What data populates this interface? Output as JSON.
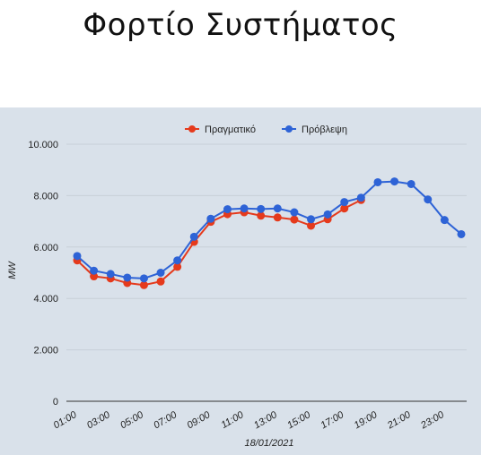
{
  "page": {
    "title": "Φορτίο Συστήματος"
  },
  "chart_data": {
    "type": "line",
    "title": "Φορτίο Συστήματος",
    "xlabel": "18/01/2021",
    "ylabel": "MW",
    "x": [
      "01:00",
      "02:00",
      "03:00",
      "04:00",
      "05:00",
      "06:00",
      "07:00",
      "08:00",
      "09:00",
      "10:00",
      "11:00",
      "12:00",
      "13:00",
      "14:00",
      "15:00",
      "16:00",
      "17:00",
      "18:00",
      "19:00",
      "20:00",
      "21:00",
      "22:00",
      "23:00",
      "24:00"
    ],
    "x_tick_labels": [
      "01:00",
      "03:00",
      "05:00",
      "07:00",
      "09:00",
      "11:00",
      "13:00",
      "15:00",
      "17:00",
      "19:00",
      "21:00",
      "23:00"
    ],
    "ylim": [
      0,
      10000
    ],
    "y_tick_labels": [
      "0",
      "2.000",
      "4.000",
      "6.000",
      "8.000",
      "10.000"
    ],
    "grid": true,
    "legend": "top-center",
    "series": [
      {
        "name": "Πραγματικό",
        "color": "#e53a1c",
        "values": [
          5480,
          4860,
          4780,
          4600,
          4520,
          4660,
          5230,
          6200,
          6980,
          7280,
          7350,
          7220,
          7150,
          7070,
          6830,
          7080,
          7500,
          7830,
          null,
          null,
          null,
          null,
          null,
          null
        ]
      },
      {
        "name": "Πρόβλεψη",
        "color": "#2e63d6",
        "values": [
          5650,
          5080,
          4950,
          4810,
          4780,
          5000,
          5480,
          6400,
          7100,
          7470,
          7500,
          7480,
          7500,
          7350,
          7080,
          7270,
          7750,
          7920,
          8520,
          8550,
          8450,
          7850,
          7050,
          6500
        ]
      }
    ]
  }
}
